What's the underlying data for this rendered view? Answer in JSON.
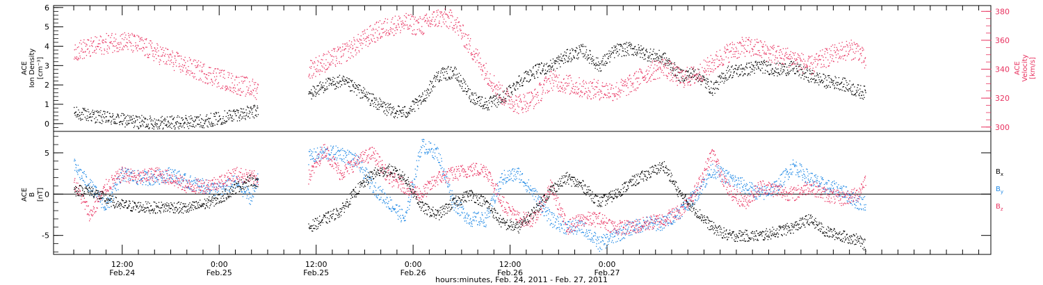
{
  "chart_data": [
    {
      "type": "scatter",
      "panel": "top",
      "ylabel_left": [
        "ACE",
        "Ion Density",
        "[cm⁻³]"
      ],
      "ylabel_right": [
        "ACE",
        "Velocity",
        "[km/s]"
      ],
      "ylim_left": [
        -0.4,
        6.1
      ],
      "ylim_right": [
        297,
        384
      ],
      "yticks_left": [
        "0",
        "1",
        "2",
        "3",
        "4",
        "5",
        "6"
      ],
      "yticks_right": [
        "300",
        "320",
        "340",
        "360",
        "380"
      ],
      "colors": {
        "density": "#000000",
        "velocity": "#e8315f"
      },
      "series": [
        {
          "axis": "left",
          "x_hours": [
            0,
            2,
            4,
            6,
            8,
            10,
            12,
            14,
            16,
            18,
            20,
            22,
            22.8,
            29,
            31,
            33,
            35,
            37,
            39,
            41,
            43,
            45,
            47,
            49,
            51,
            53,
            55,
            57,
            59,
            61,
            63,
            65,
            67,
            69,
            71,
            73,
            75,
            77,
            79,
            81,
            83,
            85,
            87,
            89,
            91,
            93,
            95,
            97,
            98
          ],
          "values": [
            0.55,
            0.45,
            0.3,
            0.2,
            0.1,
            0.08,
            0.08,
            0.1,
            0.15,
            0.3,
            0.5,
            0.6,
            0.7,
            1.5,
            2.0,
            2.2,
            1.8,
            1.2,
            0.7,
            0.6,
            1.2,
            2.5,
            2.7,
            1.5,
            1.0,
            1.3,
            2.2,
            2.7,
            3.0,
            3.5,
            3.8,
            3.0,
            3.8,
            3.9,
            3.6,
            3.4,
            2.5,
            2.6,
            1.8,
            2.7,
            2.8,
            3.0,
            2.8,
            2.9,
            2.5,
            2.2,
            2.1,
            1.7,
            1.6
          ]
        },
        {
          "axis": "right",
          "x_hours": [
            0,
            2,
            4,
            6,
            8,
            10,
            12,
            14,
            16,
            18,
            20,
            22,
            22.8,
            29,
            31,
            33,
            35,
            37,
            39,
            41,
            43,
            45,
            47,
            49,
            51,
            53,
            55,
            57,
            59,
            61,
            63,
            65,
            67,
            69,
            71,
            73,
            75,
            77,
            79,
            81,
            83,
            85,
            87,
            89,
            91,
            93,
            95,
            97,
            98
          ],
          "values": [
            353,
            355,
            358,
            360,
            357,
            352,
            347,
            342,
            338,
            334,
            330,
            327,
            326,
            340,
            345,
            350,
            357,
            365,
            370,
            372,
            370,
            376,
            374,
            356,
            338,
            322,
            316,
            320,
            333,
            330,
            327,
            326,
            325,
            330,
            338,
            342,
            334,
            336,
            344,
            352,
            356,
            354,
            350,
            348,
            342,
            348,
            353,
            354,
            344
          ]
        }
      ]
    },
    {
      "type": "scatter",
      "panel": "bottom",
      "ylabel": [
        "ACE",
        "B",
        "[nT]"
      ],
      "ylim": [
        -7.3,
        7.6
      ],
      "yticks": [
        "-5",
        "0",
        "5"
      ],
      "legend": [
        "B",
        "B",
        "B"
      ],
      "legend_subs": [
        "x",
        "y",
        "z"
      ],
      "colors": {
        "Bx": "#000000",
        "By": "#1e88e5",
        "Bz": "#e8315f"
      },
      "series": [
        {
          "name": "Bx",
          "x_hours": [
            0,
            2,
            4,
            6,
            8,
            10,
            12,
            14,
            16,
            18,
            20,
            22,
            22.8,
            29,
            31,
            33,
            35,
            37,
            39,
            41,
            43,
            45,
            47,
            49,
            51,
            53,
            55,
            57,
            59,
            61,
            63,
            65,
            67,
            69,
            71,
            73,
            75,
            77,
            79,
            81,
            83,
            85,
            87,
            89,
            91,
            93,
            95,
            97,
            98
          ],
          "values": [
            0.5,
            0.5,
            -0.6,
            -1.3,
            -1.5,
            -1.6,
            -1.5,
            -1.7,
            -1.2,
            -0.5,
            0.8,
            1.8,
            1.2,
            -4.0,
            -3.0,
            -2.0,
            0.5,
            2.5,
            3.0,
            2.0,
            -1.5,
            -2.5,
            -1.0,
            0.0,
            -1.0,
            -3.5,
            -4.0,
            -2.0,
            0.5,
            2.0,
            1.0,
            -1.0,
            0.0,
            1.5,
            2.5,
            3.5,
            0.0,
            -2.0,
            -4.0,
            -5.0,
            -5.0,
            -5.0,
            -4.5,
            -4.0,
            -3.0,
            -4.5,
            -5.0,
            -5.5,
            -6.2
          ]
        },
        {
          "name": "By",
          "x_hours": [
            0,
            2,
            4,
            6,
            8,
            10,
            12,
            14,
            16,
            18,
            20,
            22,
            22.8,
            29,
            31,
            33,
            35,
            37,
            39,
            41,
            43,
            45,
            47,
            49,
            51,
            53,
            55,
            57,
            59,
            61,
            63,
            65,
            67,
            69,
            71,
            73,
            75,
            77,
            79,
            81,
            83,
            85,
            87,
            89,
            91,
            93,
            95,
            97,
            98
          ],
          "values": [
            3.5,
            1.0,
            -1.5,
            2.5,
            2.0,
            2.0,
            2.5,
            1.5,
            1.0,
            0.5,
            1.5,
            -0.5,
            2.5,
            4.5,
            5.0,
            5.0,
            4.0,
            1.0,
            -1.0,
            -3.0,
            6.0,
            5.0,
            -1.0,
            -3.0,
            -3.0,
            2.0,
            2.5,
            0.0,
            -3.0,
            -4.0,
            -4.0,
            -6.0,
            -5.0,
            -4.0,
            -3.5,
            -3.5,
            -2.0,
            0.0,
            3.0,
            2.0,
            1.0,
            0.0,
            1.0,
            3.5,
            2.0,
            1.0,
            0.5,
            -1.0,
            -1.0
          ]
        },
        {
          "name": "Bz",
          "x_hours": [
            0,
            2,
            4,
            6,
            8,
            10,
            12,
            14,
            16,
            18,
            20,
            22,
            22.8,
            29,
            31,
            33,
            35,
            37,
            39,
            41,
            43,
            45,
            47,
            49,
            51,
            53,
            55,
            57,
            59,
            61,
            63,
            65,
            67,
            69,
            71,
            73,
            75,
            77,
            79,
            81,
            83,
            85,
            87,
            89,
            91,
            93,
            95,
            97,
            98
          ],
          "values": [
            1.5,
            -2.5,
            1.0,
            2.5,
            2.0,
            2.5,
            2.0,
            1.0,
            1.0,
            1.5,
            2.5,
            2.0,
            2.0,
            2.0,
            5.5,
            2.5,
            4.0,
            5.0,
            2.0,
            1.0,
            0.0,
            2.0,
            2.5,
            3.0,
            3.0,
            -1.0,
            -3.0,
            -3.0,
            1.0,
            -4.0,
            -3.0,
            -3.0,
            -4.0,
            -4.0,
            -3.5,
            -3.0,
            -2.0,
            0.5,
            5.0,
            0.5,
            -1.0,
            1.0,
            0.5,
            0.0,
            1.0,
            0.0,
            -0.5,
            0.0,
            2.0
          ]
        }
      ]
    }
  ],
  "time_axis": {
    "xlim_hours": [
      -2.5,
      113.5
    ],
    "ticks": [
      {
        "hours": 6,
        "time": "12:00",
        "date": "Feb.24"
      },
      {
        "hours": 18,
        "time": "0:00",
        "date": "Feb.25"
      },
      {
        "hours": 30,
        "time": "12:00",
        "date": "Feb.25"
      },
      {
        "hours": 42,
        "time": "0:00",
        "date": "Feb.26"
      },
      {
        "hours": 54,
        "time": "12:00",
        "date": "Feb.26"
      },
      {
        "hours": 66,
        "time": "0:00",
        "date": "Feb.27"
      }
    ],
    "xlabel": "hours:minutes, Feb. 24, 2011 - Feb. 27, 2011"
  }
}
